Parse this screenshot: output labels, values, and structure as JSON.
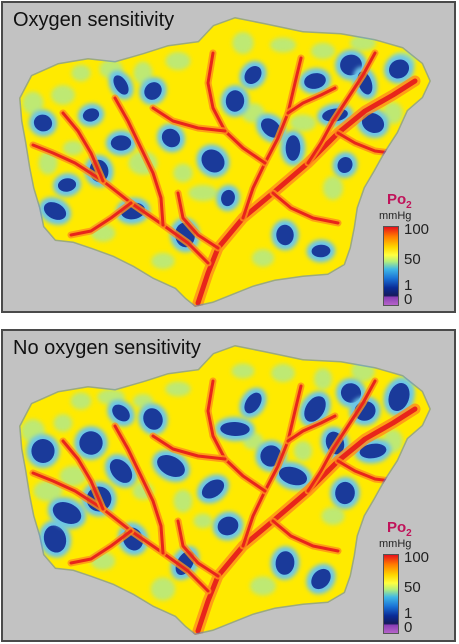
{
  "panels": [
    {
      "title": "Oxygen sensitivity"
    },
    {
      "title": "No oxygen sensitivity"
    }
  ],
  "legend": {
    "quantity": "Po",
    "subscript": "2",
    "unit": "mmHg",
    "ticks": [
      "100",
      "50",
      "1",
      "0"
    ]
  },
  "colors": {
    "background": "#c2c2c2",
    "tissue": "#ffea00",
    "vessel": "#e8251b",
    "hypoxic": "#1a3a9a",
    "mid": "#6cc6e8",
    "legend_title": "#c0135a"
  }
}
